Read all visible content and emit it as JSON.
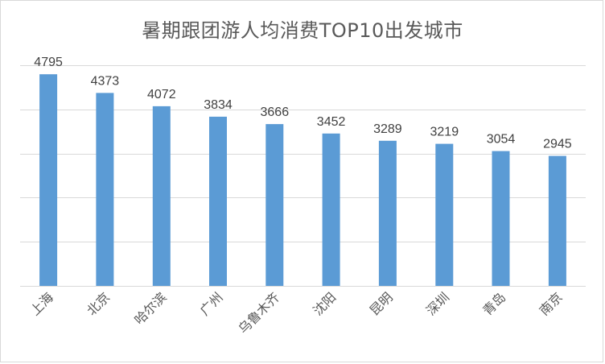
{
  "chart_data": {
    "type": "bar",
    "title": "暑期跟团游人均消费TOP10出发城市",
    "categories": [
      "上海",
      "北京",
      "哈尔滨",
      "广州",
      "乌鲁木齐",
      "沈阳",
      "昆明",
      "深圳",
      "青岛",
      "南京"
    ],
    "series": [
      {
        "values": [
          4795,
          4373,
          4072,
          3834,
          3666,
          3452,
          3289,
          3219,
          3054,
          2945
        ]
      }
    ],
    "ylim": [
      0,
      5000
    ],
    "y_gridline_step": 1000,
    "grid": true,
    "legend": "none",
    "y_axis_labels_visible": false,
    "data_labels": true,
    "bar_color": "#5b9bd5"
  }
}
